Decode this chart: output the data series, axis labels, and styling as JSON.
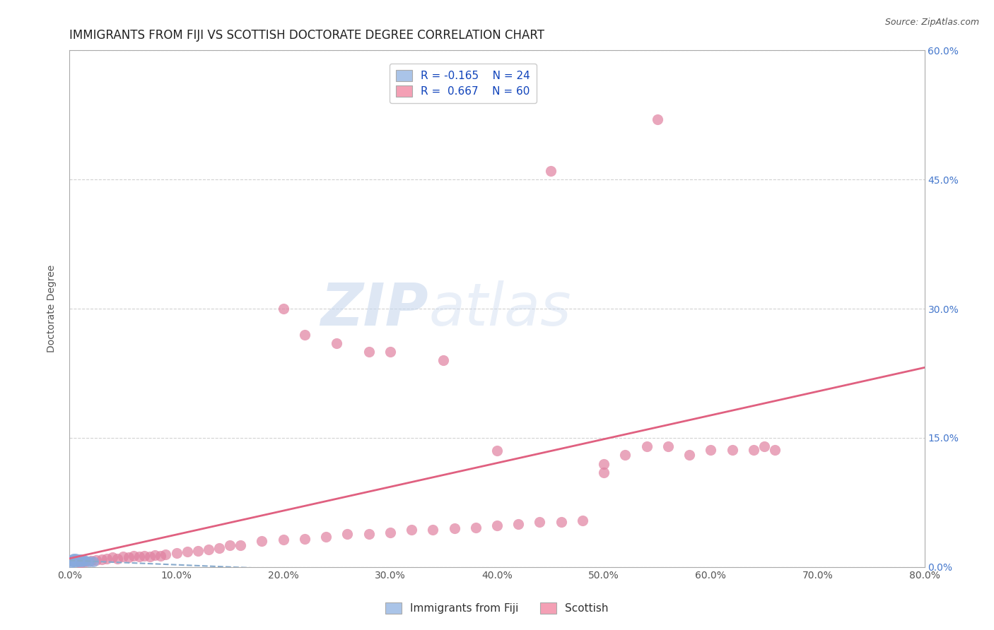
{
  "title": "IMMIGRANTS FROM FIJI VS SCOTTISH DOCTORATE DEGREE CORRELATION CHART",
  "source_text": "Source: ZipAtlas.com",
  "ylabel": "Doctorate Degree",
  "legend_labels": [
    "Immigrants from Fiji",
    "Scottish"
  ],
  "r_fiji": -0.165,
  "n_fiji": 24,
  "r_scottish": 0.667,
  "n_scottish": 60,
  "color_fiji": "#aac4e8",
  "color_scottish": "#f4a0b5",
  "dot_color_fiji": "#88aadd",
  "dot_color_scottish": "#e080a0",
  "trendline_color_fiji": "#88aacc",
  "trendline_color_scottish": "#e06080",
  "background_color": "#ffffff",
  "grid_color": "#cccccc",
  "xmin": 0.0,
  "xmax": 0.8,
  "ymin": 0.0,
  "ymax": 0.6,
  "xticks": [
    0.0,
    0.1,
    0.2,
    0.3,
    0.4,
    0.5,
    0.6,
    0.7,
    0.8
  ],
  "yticks": [
    0.0,
    0.15,
    0.3,
    0.45,
    0.6
  ],
  "right_yticklabels": [
    "0.0%",
    "15.0%",
    "30.0%",
    "45.0%",
    "60.0%"
  ],
  "watermark_zip": "ZIP",
  "watermark_atlas": "atlas",
  "title_fontsize": 12,
  "axis_label_fontsize": 10,
  "tick_fontsize": 10,
  "fiji_points_x": [
    0.001,
    0.002,
    0.002,
    0.003,
    0.003,
    0.004,
    0.004,
    0.005,
    0.005,
    0.006,
    0.006,
    0.007,
    0.007,
    0.008,
    0.008,
    0.009,
    0.01,
    0.01,
    0.011,
    0.012,
    0.013,
    0.015,
    0.018,
    0.022
  ],
  "fiji_points_y": [
    0.005,
    0.007,
    0.008,
    0.006,
    0.009,
    0.007,
    0.01,
    0.006,
    0.008,
    0.01,
    0.007,
    0.008,
    0.006,
    0.009,
    0.007,
    0.006,
    0.008,
    0.009,
    0.007,
    0.006,
    0.008,
    0.007,
    0.006,
    0.006
  ],
  "scottish_points_x": [
    0.01,
    0.015,
    0.02,
    0.025,
    0.03,
    0.035,
    0.04,
    0.045,
    0.05,
    0.055,
    0.06,
    0.065,
    0.07,
    0.075,
    0.08,
    0.085,
    0.09,
    0.1,
    0.11,
    0.12,
    0.13,
    0.14,
    0.15,
    0.16,
    0.18,
    0.2,
    0.22,
    0.24,
    0.26,
    0.28,
    0.3,
    0.32,
    0.34,
    0.36,
    0.38,
    0.4,
    0.42,
    0.44,
    0.46,
    0.48,
    0.5,
    0.52,
    0.54,
    0.56,
    0.58,
    0.6,
    0.62,
    0.64,
    0.65,
    0.66,
    0.4,
    0.5,
    0.2,
    0.25,
    0.3,
    0.35,
    0.22,
    0.28,
    0.45,
    0.55
  ],
  "scottish_points_y": [
    0.005,
    0.006,
    0.007,
    0.008,
    0.009,
    0.01,
    0.011,
    0.01,
    0.012,
    0.011,
    0.013,
    0.012,
    0.013,
    0.012,
    0.014,
    0.013,
    0.015,
    0.016,
    0.018,
    0.019,
    0.02,
    0.022,
    0.025,
    0.025,
    0.03,
    0.032,
    0.033,
    0.035,
    0.038,
    0.038,
    0.04,
    0.043,
    0.043,
    0.045,
    0.046,
    0.048,
    0.05,
    0.052,
    0.052,
    0.054,
    0.12,
    0.13,
    0.14,
    0.14,
    0.13,
    0.136,
    0.136,
    0.136,
    0.14,
    0.136,
    0.135,
    0.11,
    0.3,
    0.26,
    0.25,
    0.24,
    0.27,
    0.25,
    0.46,
    0.52
  ]
}
